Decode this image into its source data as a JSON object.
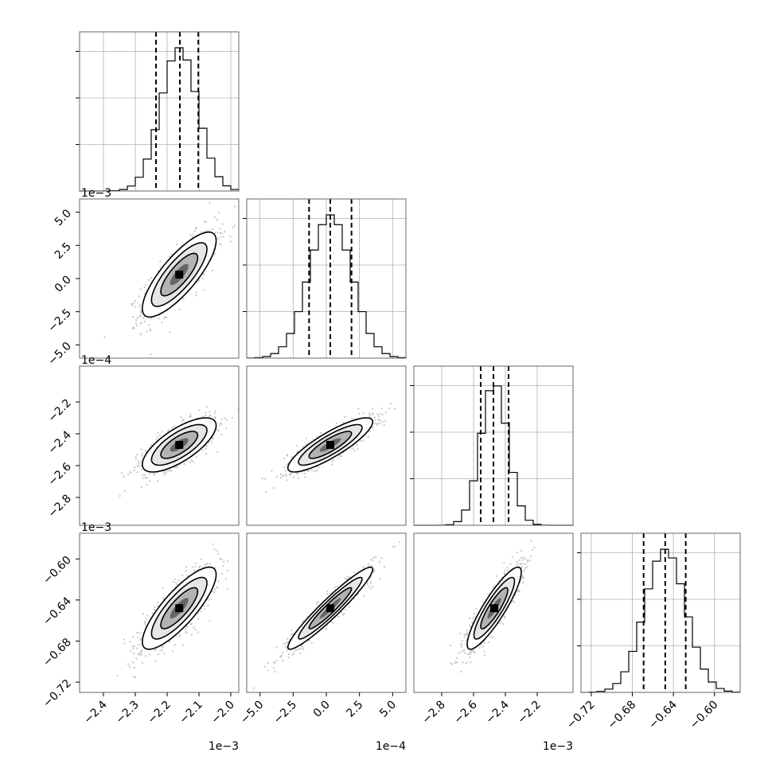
{
  "chart_data": {
    "type": "corner",
    "parameters": [
      {
        "label": "",
        "offset_text": "1e−3",
        "range": [
          -2.475,
          -1.975
        ],
        "ticks": [
          {
            "value": -2.4,
            "label": "−2.4"
          },
          {
            "value": -2.3,
            "label": "−2.3"
          },
          {
            "value": -2.2,
            "label": "−2.2"
          },
          {
            "value": -2.1,
            "label": "−2.1"
          },
          {
            "value": -2.0,
            "label": "−2.0"
          }
        ],
        "quantiles": [
          -2.235,
          -2.16,
          -2.102
        ],
        "mean": -2.162,
        "sd": 0.058
      },
      {
        "label": "",
        "offset_text": "1e−4",
        "range": [
          -6.0,
          6.0
        ],
        "ticks": [
          {
            "value": -5.0,
            "label": "−5.0"
          },
          {
            "value": -2.5,
            "label": "−2.5"
          },
          {
            "value": 0.0,
            "label": "0.0"
          },
          {
            "value": 2.5,
            "label": "2.5"
          },
          {
            "value": 5.0,
            "label": "5.0"
          }
        ],
        "quantiles": [
          -1.3,
          0.3,
          1.9
        ],
        "mean": 0.3,
        "sd": 1.6
      },
      {
        "label": "",
        "offset_text": "1e−3",
        "range": [
          -2.975,
          -1.975
        ],
        "ticks": [
          {
            "value": -2.8,
            "label": "−2.8"
          },
          {
            "value": -2.6,
            "label": "−2.6"
          },
          {
            "value": -2.4,
            "label": "−2.4"
          },
          {
            "value": -2.2,
            "label": "−2.2"
          }
        ],
        "quantiles": [
          -2.555,
          -2.475,
          -2.38
        ],
        "mean": -2.47,
        "sd": 0.085
      },
      {
        "label": "",
        "offset_text": "",
        "range": [
          -0.73,
          -0.575
        ],
        "ticks": [
          {
            "value": -0.72,
            "label": "−0.72"
          },
          {
            "value": -0.68,
            "label": "−0.68"
          },
          {
            "value": -0.64,
            "label": "−0.64"
          },
          {
            "value": -0.6,
            "label": "−0.60"
          }
        ],
        "quantiles": [
          -0.669,
          -0.648,
          -0.628
        ],
        "mean": -0.648,
        "sd": 0.02
      }
    ],
    "correlations": [
      {
        "row": 1,
        "col": 0,
        "rho": 0.8
      },
      {
        "row": 2,
        "col": 0,
        "rho": 0.72
      },
      {
        "row": 2,
        "col": 1,
        "rho": 0.85
      },
      {
        "row": 3,
        "col": 0,
        "rho": 0.82
      },
      {
        "row": 3,
        "col": 1,
        "rho": 0.95
      },
      {
        "row": 3,
        "col": 2,
        "rho": 0.88
      }
    ],
    "grid": true,
    "colors": {
      "line": "#000000",
      "samples": "#7f7f7f",
      "grid": "#b0b0b0"
    }
  }
}
